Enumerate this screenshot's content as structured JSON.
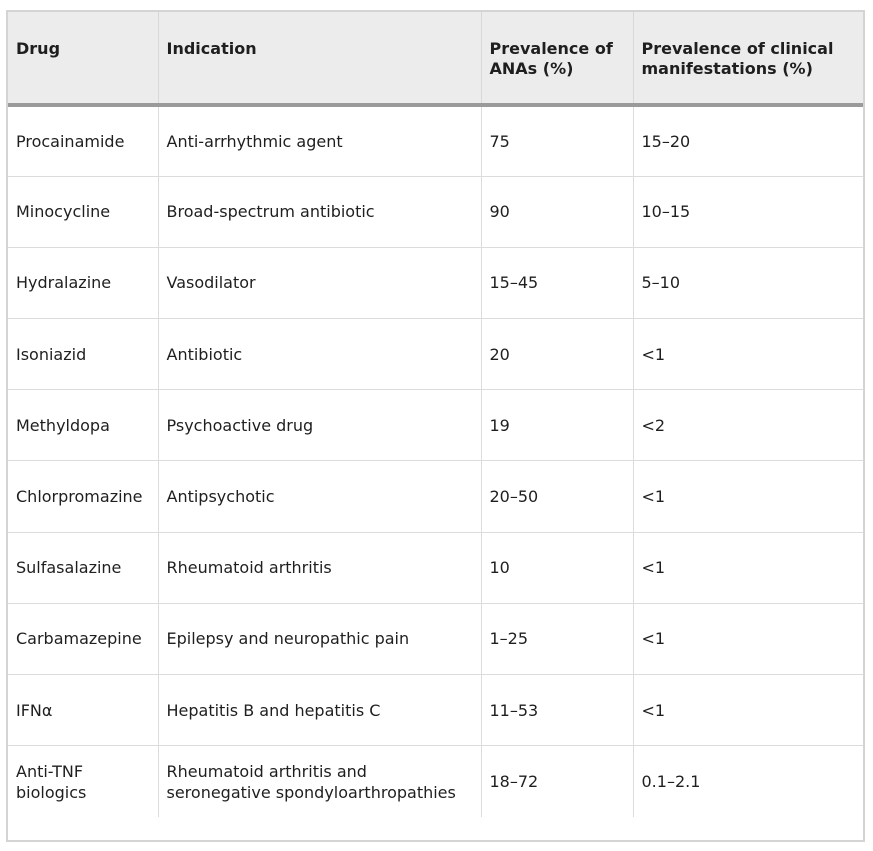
{
  "table": {
    "headers": [
      "Drug",
      "Indication",
      "Prevalence of ANAs (%)",
      "Prevalence of clinical manifestations (%)"
    ],
    "rows": [
      [
        "Procainamide",
        "Anti-arrhythmic agent",
        "75",
        "15–20"
      ],
      [
        "Minocycline",
        "Broad-spectrum antibiotic",
        "90",
        "10–15"
      ],
      [
        "Hydralazine",
        "Vasodilator",
        "15–45",
        "5–10"
      ],
      [
        "Isoniazid",
        "Antibiotic",
        "20",
        "<1"
      ],
      [
        "Methyldopa",
        "Psychoactive drug",
        "19",
        "<2"
      ],
      [
        "Chlorpromazine",
        "Antipsychotic",
        "20–50",
        "<1"
      ],
      [
        "Sulfasalazine",
        "Rheumatoid arthritis",
        "10",
        "<1"
      ],
      [
        "Carbamazepine",
        "Epilepsy and neuropathic pain",
        "1–25",
        "<1"
      ],
      [
        "IFNα",
        "Hepatitis B and hepatitis C",
        "11–53",
        "<1"
      ],
      [
        "Anti-TNF biologics",
        "Rheumatoid arthritis and seronegative spondyloarthropathies",
        "18–72",
        "0.1–2.1"
      ]
    ]
  }
}
